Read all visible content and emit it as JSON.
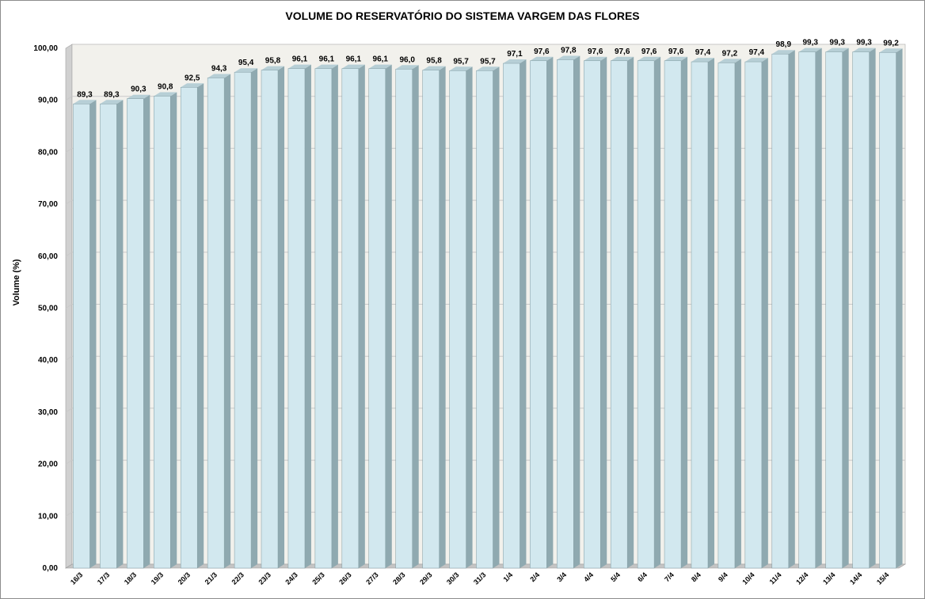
{
  "chart_data": {
    "type": "bar",
    "title": "VOLUME DO RESERVATÓRIO DO SISTEMA VARGEM DAS FLORES",
    "xlabel": "",
    "ylabel": "Volume (%)",
    "ylim": [
      0,
      100
    ],
    "y_ticks": [
      "0,00",
      "10,00",
      "20,00",
      "30,00",
      "40,00",
      "50,00",
      "60,00",
      "70,00",
      "80,00",
      "90,00",
      "100,00"
    ],
    "grid": true,
    "categories": [
      "16/3",
      "17/3",
      "18/3",
      "19/3",
      "20/3",
      "21/3",
      "22/3",
      "23/3",
      "24/3",
      "25/3",
      "26/3",
      "27/3",
      "28/3",
      "29/3",
      "30/3",
      "31/3",
      "1/4",
      "2/4",
      "3/4",
      "4/4",
      "5/4",
      "6/4",
      "7/4",
      "8/4",
      "9/4",
      "10/4",
      "11/4",
      "12/4",
      "13/4",
      "14/4",
      "15/4"
    ],
    "values": [
      89.3,
      89.3,
      90.3,
      90.8,
      92.5,
      94.3,
      95.4,
      95.8,
      96.1,
      96.1,
      96.1,
      96.1,
      96.0,
      95.8,
      95.7,
      95.7,
      97.1,
      97.6,
      97.8,
      97.6,
      97.6,
      97.6,
      97.6,
      97.4,
      97.2,
      97.4,
      98.9,
      99.3,
      99.3,
      99.3,
      99.2
    ],
    "data_labels": [
      "89,3",
      "89,3",
      "90,3",
      "90,8",
      "92,5",
      "94,3",
      "95,4",
      "95,8",
      "96,1",
      "96,1",
      "96,1",
      "96,1",
      "96,0",
      "95,8",
      "95,7",
      "95,7",
      "97,1",
      "97,6",
      "97,8",
      "97,6",
      "97,6",
      "97,6",
      "97,6",
      "97,4",
      "97,2",
      "97,4",
      "98,9",
      "99,3",
      "99,3",
      "99,3",
      "99,2"
    ],
    "colors": {
      "bar_front": "#d2e8ef",
      "bar_side": "#8fa9b0",
      "bar_top": "#b7cfd6",
      "plot_wall": "#f2f1ec",
      "wall_side": "#d0d0d0",
      "floor": "#c4c4c4",
      "gridline": "#c9c9c9"
    }
  }
}
